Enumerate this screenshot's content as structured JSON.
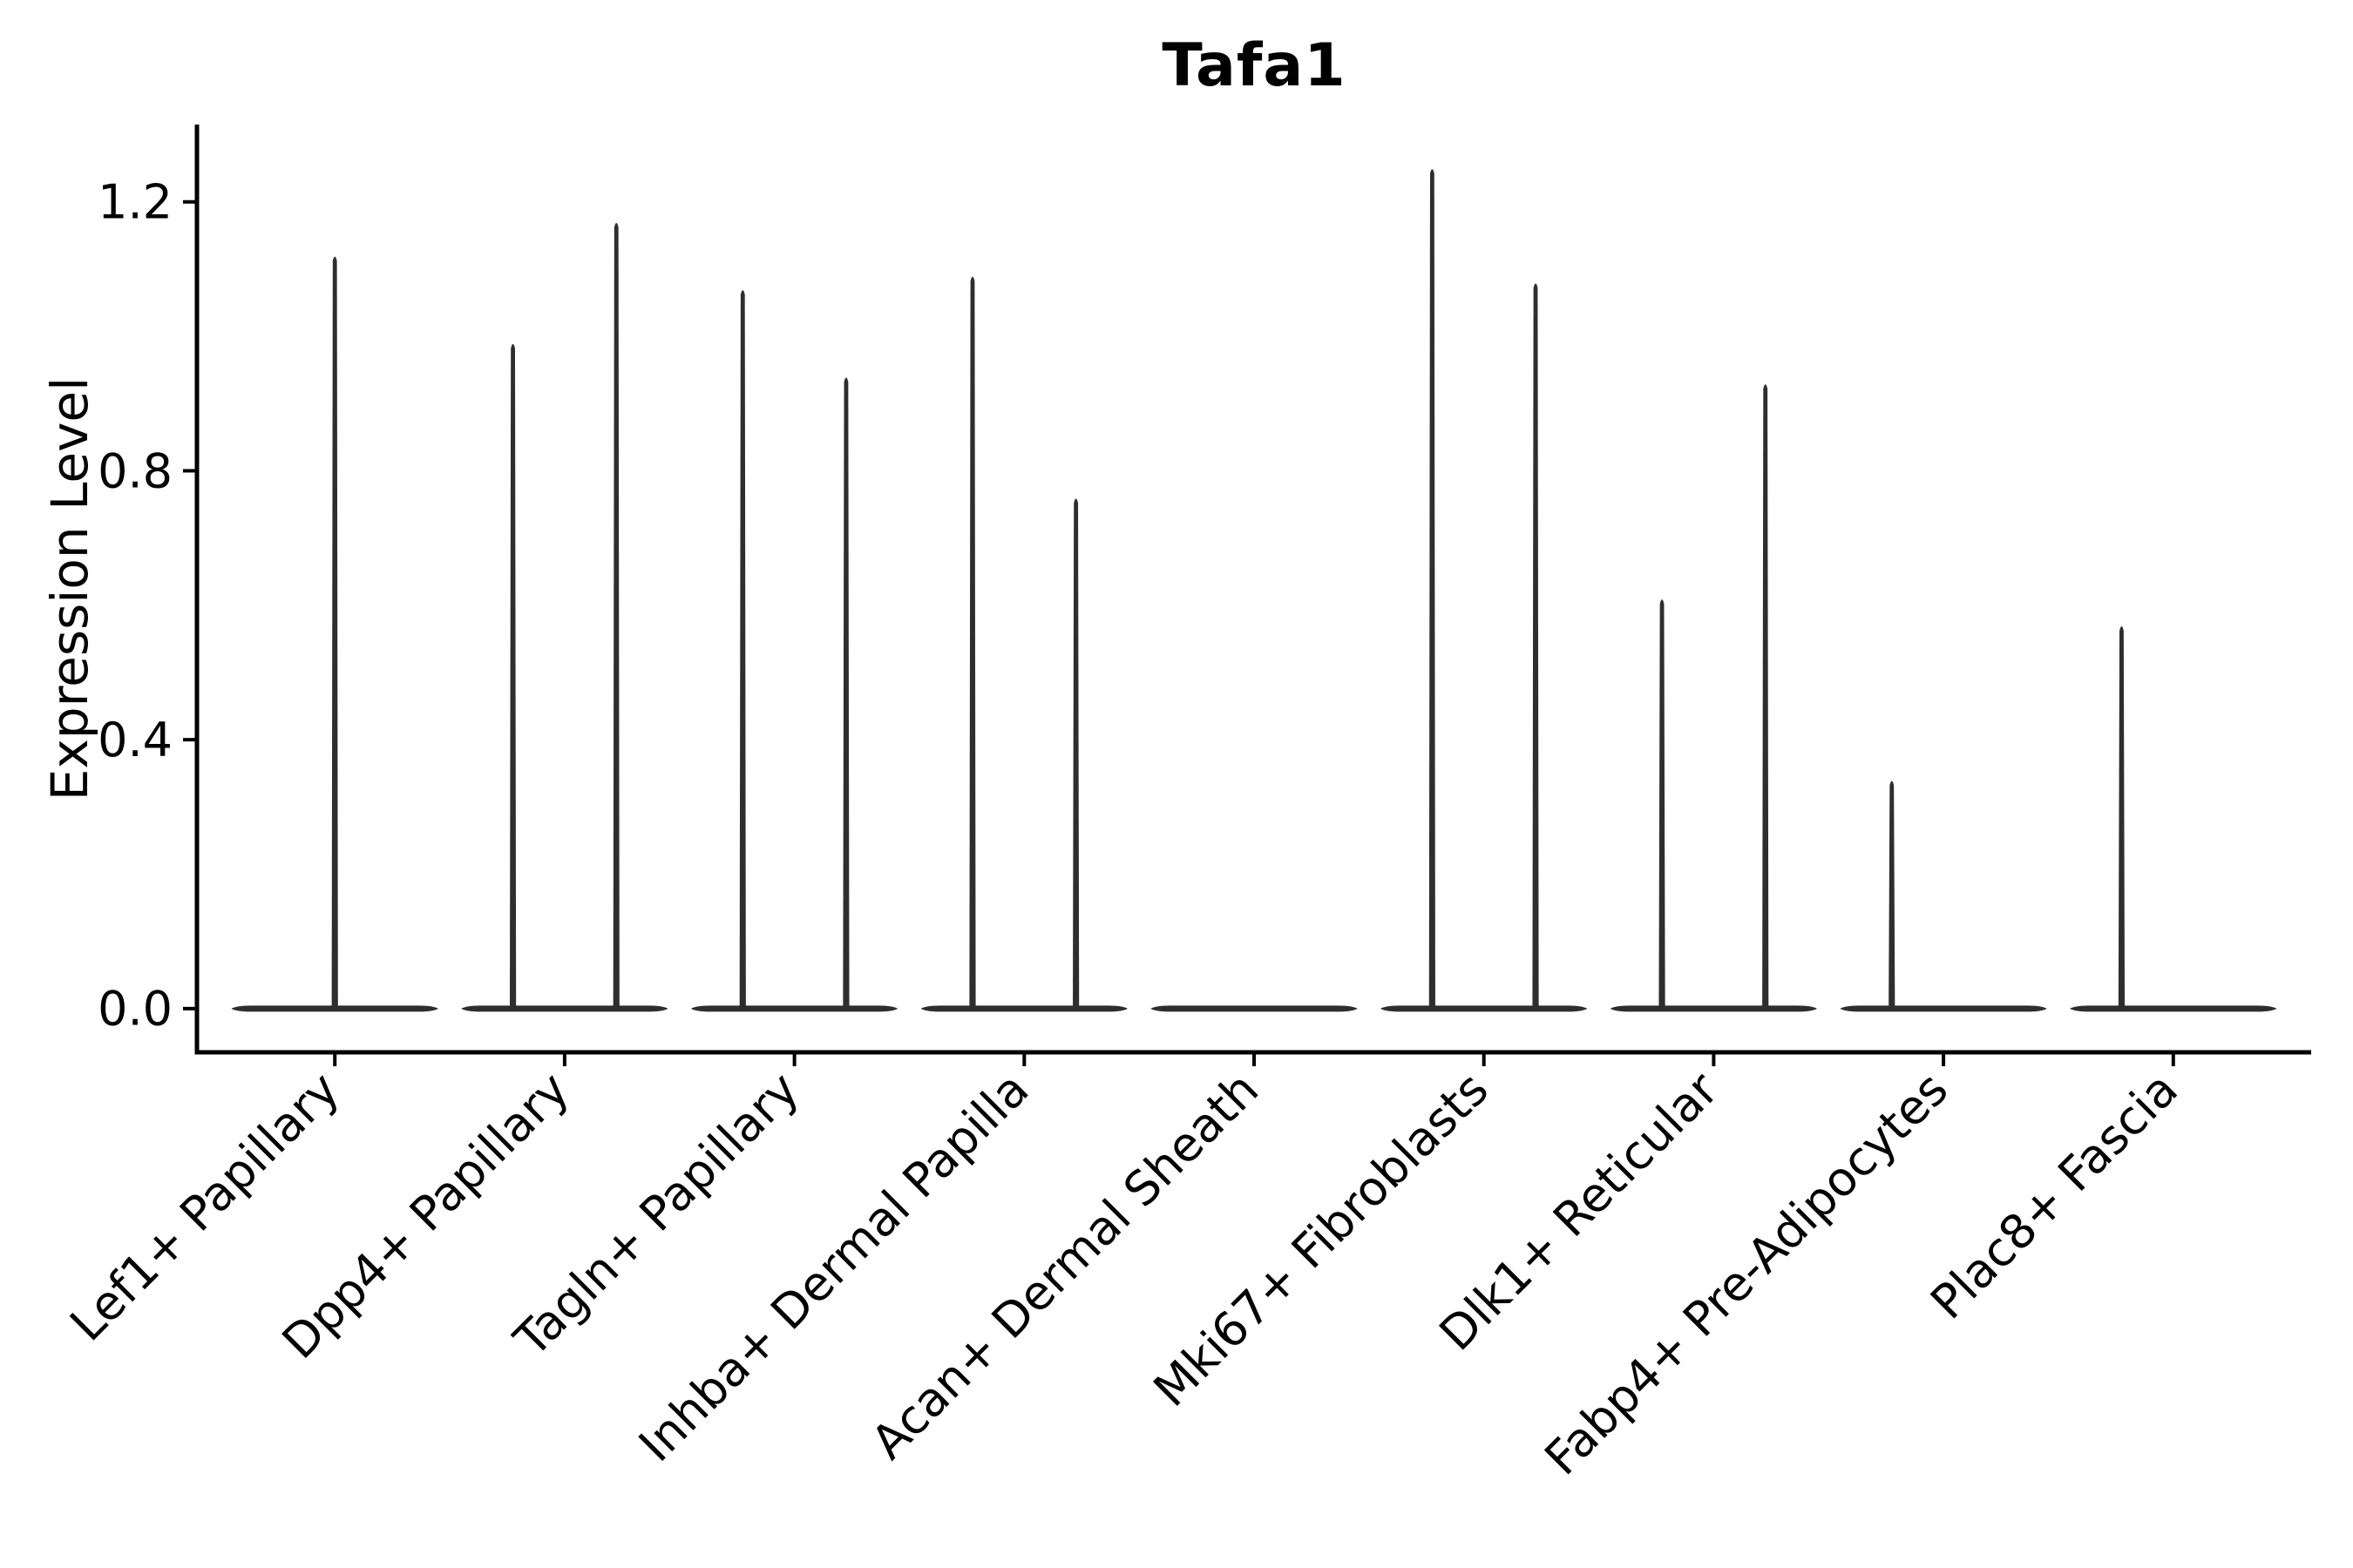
{
  "chart_data": {
    "type": "violin",
    "title": "Tafa1",
    "ylabel": "Expression Level",
    "xlabel": "",
    "categories": [
      "Lef1+ Papillary",
      "Dpp4+ Papillary",
      "Tagln+ Papillary",
      "Inhba+ Dermal Papilla",
      "Acan+ Dermal Sheath",
      "Mki67+ Fibroblasts",
      "Dlk1+ Reticular",
      "Fabp4+ Pre-Adipocytes",
      "Plac8+ Fascia"
    ],
    "series": [
      {
        "category": "Lef1+ Papillary",
        "spikes": [
          {
            "position": "center",
            "max": 1.12
          }
        ]
      },
      {
        "category": "Dpp4+ Papillary",
        "spikes": [
          {
            "position": "left",
            "max": 0.99
          },
          {
            "position": "right",
            "max": 1.17
          }
        ]
      },
      {
        "category": "Tagln+ Papillary",
        "spikes": [
          {
            "position": "left",
            "max": 1.07
          },
          {
            "position": "right",
            "max": 0.94
          }
        ]
      },
      {
        "category": "Inhba+ Dermal Papilla",
        "spikes": [
          {
            "position": "left",
            "max": 1.09
          },
          {
            "position": "right",
            "max": 0.76
          }
        ]
      },
      {
        "category": "Acan+ Dermal Sheath",
        "spikes": []
      },
      {
        "category": "Mki67+ Fibroblasts",
        "spikes": [
          {
            "position": "left",
            "max": 1.25
          },
          {
            "position": "right",
            "max": 1.08
          }
        ]
      },
      {
        "category": "Dlk1+ Reticular",
        "spikes": [
          {
            "position": "left",
            "max": 0.61
          },
          {
            "position": "right",
            "max": 0.93
          }
        ]
      },
      {
        "category": "Fabp4+ Pre-Adipocytes",
        "spikes": [
          {
            "position": "left",
            "max": 0.34
          }
        ]
      },
      {
        "category": "Plac8+ Fascia",
        "spikes": [
          {
            "position": "left",
            "max": 0.57
          }
        ]
      }
    ],
    "baseline_value": 0.0,
    "yticks": [
      0.0,
      0.4,
      0.8,
      1.2
    ],
    "ytick_labels": [
      "0.0",
      "0.4",
      "0.8",
      "1.2"
    ],
    "ylim": [
      -0.065,
      1.315
    ],
    "xlim": [
      0.4,
      9.6
    ],
    "grid": false,
    "legend": "none",
    "violin_color": "#2e2e2e",
    "axis_color": "#000000",
    "background_color": "#ffffff",
    "violin_width": 0.9,
    "group_offset": 0.225,
    "x_tick_rotation_deg": 45
  }
}
